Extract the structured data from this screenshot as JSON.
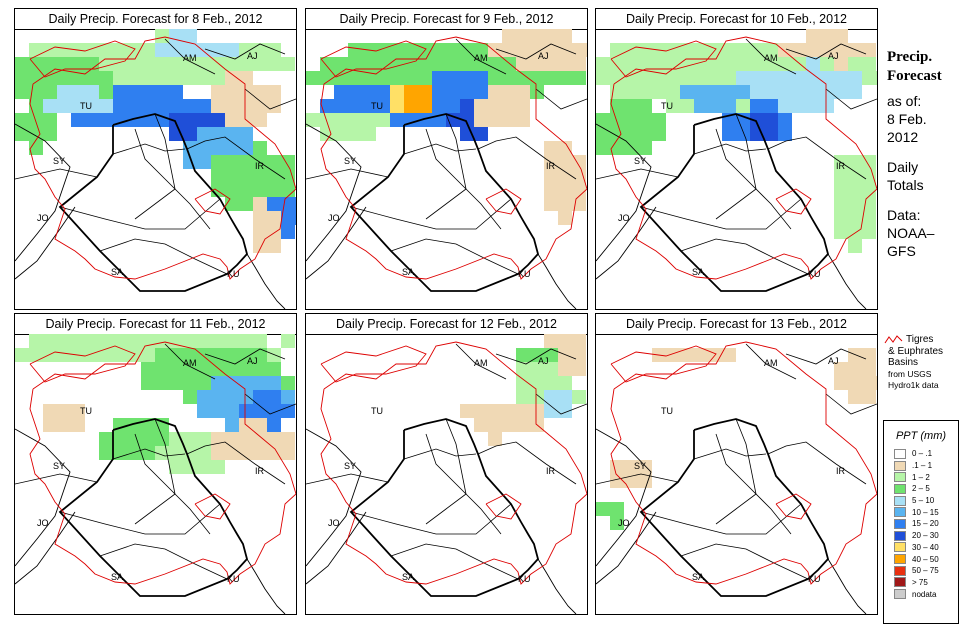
{
  "panels": [
    {
      "title": "Daily Precip. Forecast for  8 Feb., 2012",
      "day": 0
    },
    {
      "title": "Daily Precip. Forecast for  9 Feb., 2012",
      "day": 1
    },
    {
      "title": "Daily Precip. Forecast for  10 Feb., 2012",
      "day": 2
    },
    {
      "title": "Daily Precip. Forecast for  11 Feb., 2012",
      "day": 3
    },
    {
      "title": "Daily Precip. Forecast for  12 Feb., 2012",
      "day": 4
    },
    {
      "title": "Daily Precip. Forecast for  13 Feb., 2012",
      "day": 5
    }
  ],
  "country_labels": [
    "AM",
    "AJ",
    "TU",
    "SY",
    "IR",
    "JO",
    "SA",
    "KU"
  ],
  "side": {
    "title_line1": "Precip.",
    "title_line2": "Forecast",
    "asof": "as of:",
    "date1": "8 Feb.",
    "date2": "2012",
    "daily1": "Daily",
    "daily2": "Totals",
    "data1": "Data:",
    "data2": "NOAA–",
    "data3": "GFS"
  },
  "basin_legend": {
    "line1": "Tigres",
    "line2": "& Euphrates",
    "line3": "Basins",
    "line4": "from USGS",
    "line5": "Hydro1k data"
  },
  "legend": {
    "title": "PPT (mm)",
    "classes": [
      {
        "label": "0 – .1",
        "color": "#ffffff"
      },
      {
        "label": ".1 – 1",
        "color": "#f0d9b5"
      },
      {
        "label": "1 – 2",
        "color": "#b6f5a8"
      },
      {
        "label": "2 – 5",
        "color": "#6fe36f"
      },
      {
        "label": "5 – 10",
        "color": "#a8e0f5"
      },
      {
        "label": "10 – 15",
        "color": "#5ab4f0"
      },
      {
        "label": "15 – 20",
        "color": "#2f7ff0"
      },
      {
        "label": "20 – 30",
        "color": "#1f4fd8"
      },
      {
        "label": "30 – 40",
        "color": "#ffe066"
      },
      {
        "label": "40 – 50",
        "color": "#ffa500"
      },
      {
        "label": "50 – 75",
        "color": "#e83010"
      },
      {
        "label": "> 75",
        "color": "#a01818"
      },
      {
        "label": "nodata",
        "color": "#cccccc"
      }
    ]
  },
  "colors": {
    "border": "#000000",
    "basin_outline": "#dd0000",
    "coast": "#000000"
  }
}
